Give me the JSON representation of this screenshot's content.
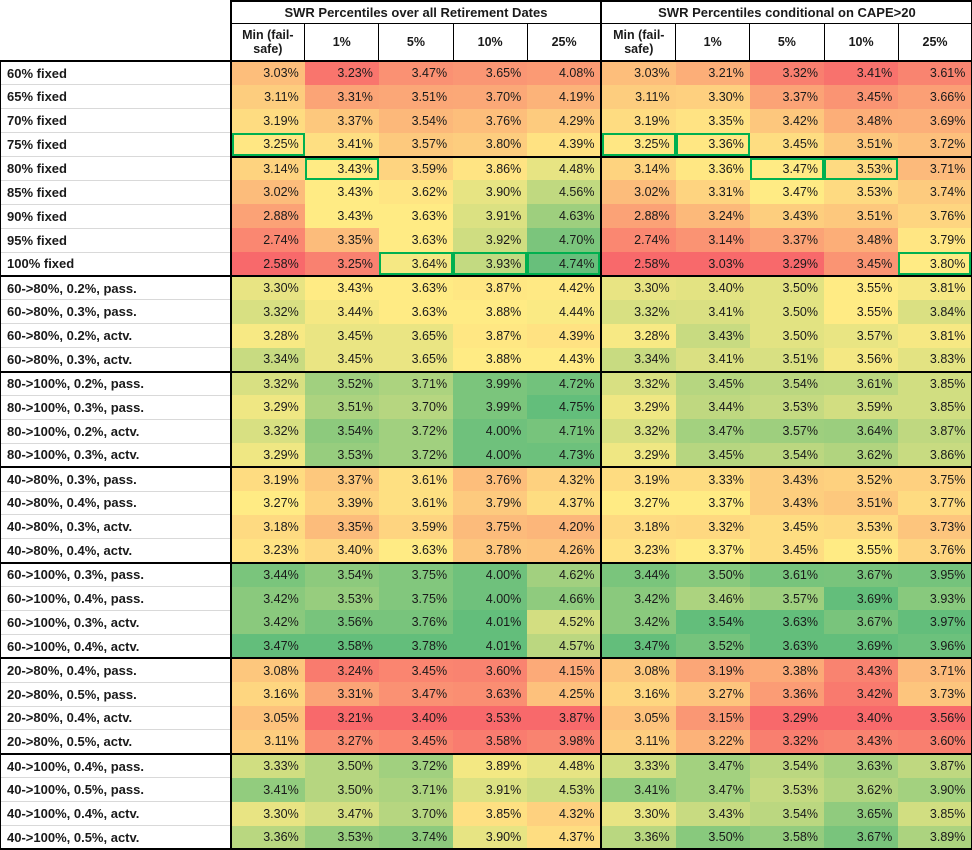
{
  "chart_data": {
    "type": "heatmap-table",
    "group_headers": [
      "SWR Percentiles over all Retirement Dates",
      "SWR Percentiles conditional on CAPE>20"
    ],
    "col_headers": [
      "Min (fail-safe)",
      "1%",
      "5%",
      "10%",
      "25%"
    ],
    "value_suffix": "%",
    "colors": {
      "scale_min_red": "#F8696B",
      "scale_mid_yellow": "#FFEB84",
      "scale_max_green": "#63BE7B",
      "highlight_border_green": "#00B050",
      "border_black": "#000000",
      "label_gridline": "#d9d9d9"
    },
    "color_scale_note": "3-color scale applied per column: min=red, median=yellow, max=green",
    "blocks": [
      {
        "rows": [
          {
            "label": "60% fixed",
            "all": [
              3.03,
              3.23,
              3.47,
              3.65,
              4.08
            ],
            "cape": [
              3.03,
              3.21,
              3.32,
              3.41,
              3.61
            ],
            "hl_all": [],
            "hl_cape": []
          },
          {
            "label": "65% fixed",
            "all": [
              3.11,
              3.31,
              3.51,
              3.7,
              4.19
            ],
            "cape": [
              3.11,
              3.3,
              3.37,
              3.45,
              3.66
            ],
            "hl_all": [],
            "hl_cape": []
          },
          {
            "label": "70% fixed",
            "all": [
              3.19,
              3.37,
              3.54,
              3.76,
              4.29
            ],
            "cape": [
              3.19,
              3.35,
              3.42,
              3.48,
              3.69
            ],
            "hl_all": [],
            "hl_cape": []
          },
          {
            "label": "75% fixed",
            "all": [
              3.25,
              3.41,
              3.57,
              3.8,
              4.39
            ],
            "cape": [
              3.25,
              3.36,
              3.45,
              3.51,
              3.72
            ],
            "hl_all": [
              0
            ],
            "hl_cape": [
              0,
              1
            ]
          },
          {
            "label": "80% fixed",
            "all": [
              3.14,
              3.43,
              3.59,
              3.86,
              4.48
            ],
            "cape": [
              3.14,
              3.36,
              3.47,
              3.53,
              3.71
            ],
            "hl_all": [
              1
            ],
            "hl_cape": [
              2,
              3
            ],
            "divider_above": true
          },
          {
            "label": "85% fixed",
            "all": [
              3.02,
              3.43,
              3.62,
              3.9,
              4.56
            ],
            "cape": [
              3.02,
              3.31,
              3.47,
              3.53,
              3.74
            ],
            "hl_all": [],
            "hl_cape": []
          },
          {
            "label": "90% fixed",
            "all": [
              2.88,
              3.43,
              3.63,
              3.91,
              4.63
            ],
            "cape": [
              2.88,
              3.24,
              3.43,
              3.51,
              3.76
            ],
            "hl_all": [],
            "hl_cape": []
          },
          {
            "label": "95% fixed",
            "all": [
              2.74,
              3.35,
              3.63,
              3.92,
              4.7
            ],
            "cape": [
              2.74,
              3.14,
              3.37,
              3.48,
              3.79
            ],
            "hl_all": [],
            "hl_cape": []
          },
          {
            "label": "100% fixed",
            "all": [
              2.58,
              3.25,
              3.64,
              3.93,
              4.74
            ],
            "cape": [
              2.58,
              3.03,
              3.29,
              3.45,
              3.8
            ],
            "hl_all": [
              2,
              3,
              4
            ],
            "hl_cape": [
              4
            ]
          }
        ]
      },
      {
        "rows": [
          {
            "label": "60->80%, 0.2%, pass.",
            "all": [
              3.3,
              3.43,
              3.63,
              3.87,
              4.42
            ],
            "cape": [
              3.3,
              3.4,
              3.5,
              3.55,
              3.81
            ],
            "hl_all": [],
            "hl_cape": []
          },
          {
            "label": "60->80%, 0.3%, pass.",
            "all": [
              3.32,
              3.44,
              3.63,
              3.88,
              4.44
            ],
            "cape": [
              3.32,
              3.41,
              3.5,
              3.55,
              3.84
            ],
            "hl_all": [],
            "hl_cape": []
          },
          {
            "label": "60->80%, 0.2%, actv.",
            "all": [
              3.28,
              3.45,
              3.65,
              3.87,
              4.39
            ],
            "cape": [
              3.28,
              3.43,
              3.5,
              3.57,
              3.81
            ],
            "hl_all": [],
            "hl_cape": []
          },
          {
            "label": "60->80%, 0.3%, actv.",
            "all": [
              3.34,
              3.45,
              3.65,
              3.88,
              4.43
            ],
            "cape": [
              3.34,
              3.41,
              3.51,
              3.56,
              3.83
            ],
            "hl_all": [],
            "hl_cape": []
          }
        ]
      },
      {
        "rows": [
          {
            "label": "80->100%, 0.2%, pass.",
            "all": [
              3.32,
              3.52,
              3.71,
              3.99,
              4.72
            ],
            "cape": [
              3.32,
              3.45,
              3.54,
              3.61,
              3.85
            ],
            "hl_all": [],
            "hl_cape": []
          },
          {
            "label": "80->100%, 0.3%, pass.",
            "all": [
              3.29,
              3.51,
              3.7,
              3.99,
              4.75
            ],
            "cape": [
              3.29,
              3.44,
              3.53,
              3.59,
              3.85
            ],
            "hl_all": [],
            "hl_cape": []
          },
          {
            "label": "80->100%, 0.2%, actv.",
            "all": [
              3.32,
              3.54,
              3.72,
              4.0,
              4.71
            ],
            "cape": [
              3.32,
              3.47,
              3.57,
              3.64,
              3.87
            ],
            "hl_all": [],
            "hl_cape": []
          },
          {
            "label": "80->100%, 0.3%, actv.",
            "all": [
              3.29,
              3.53,
              3.72,
              4.0,
              4.73
            ],
            "cape": [
              3.29,
              3.45,
              3.54,
              3.62,
              3.86
            ],
            "hl_all": [],
            "hl_cape": []
          }
        ]
      },
      {
        "rows": [
          {
            "label": "40->80%, 0.3%, pass.",
            "all": [
              3.19,
              3.37,
              3.61,
              3.76,
              4.32
            ],
            "cape": [
              3.19,
              3.33,
              3.43,
              3.52,
              3.75
            ],
            "hl_all": [],
            "hl_cape": []
          },
          {
            "label": "40->80%, 0.4%, pass.",
            "all": [
              3.27,
              3.39,
              3.61,
              3.79,
              4.37
            ],
            "cape": [
              3.27,
              3.37,
              3.43,
              3.51,
              3.77
            ],
            "hl_all": [],
            "hl_cape": []
          },
          {
            "label": "40->80%, 0.3%, actv.",
            "all": [
              3.18,
              3.35,
              3.59,
              3.75,
              4.2
            ],
            "cape": [
              3.18,
              3.32,
              3.45,
              3.53,
              3.73
            ],
            "hl_all": [],
            "hl_cape": []
          },
          {
            "label": "40->80%, 0.4%, actv.",
            "all": [
              3.23,
              3.4,
              3.63,
              3.78,
              4.26
            ],
            "cape": [
              3.23,
              3.37,
              3.45,
              3.55,
              3.76
            ],
            "hl_all": [],
            "hl_cape": []
          }
        ]
      },
      {
        "rows": [
          {
            "label": "60->100%, 0.3%, pass.",
            "all": [
              3.44,
              3.54,
              3.75,
              4.0,
              4.62
            ],
            "cape": [
              3.44,
              3.5,
              3.61,
              3.67,
              3.95
            ],
            "hl_all": [],
            "hl_cape": []
          },
          {
            "label": "60->100%, 0.4%, pass.",
            "all": [
              3.42,
              3.53,
              3.75,
              4.0,
              4.66
            ],
            "cape": [
              3.42,
              3.46,
              3.57,
              3.69,
              3.93
            ],
            "hl_all": [],
            "hl_cape": []
          },
          {
            "label": "60->100%, 0.3%, actv.",
            "all": [
              3.42,
              3.56,
              3.76,
              4.01,
              4.52
            ],
            "cape": [
              3.42,
              3.54,
              3.63,
              3.67,
              3.97
            ],
            "hl_all": [],
            "hl_cape": []
          },
          {
            "label": "60->100%, 0.4%, actv.",
            "all": [
              3.47,
              3.58,
              3.78,
              4.01,
              4.57
            ],
            "cape": [
              3.47,
              3.52,
              3.63,
              3.69,
              3.96
            ],
            "hl_all": [],
            "hl_cape": []
          }
        ]
      },
      {
        "rows": [
          {
            "label": "20->80%, 0.4%, pass.",
            "all": [
              3.08,
              3.24,
              3.45,
              3.6,
              4.15
            ],
            "cape": [
              3.08,
              3.19,
              3.38,
              3.43,
              3.71
            ],
            "hl_all": [],
            "hl_cape": []
          },
          {
            "label": "20->80%, 0.5%, pass.",
            "all": [
              3.16,
              3.31,
              3.47,
              3.63,
              4.25
            ],
            "cape": [
              3.16,
              3.27,
              3.36,
              3.42,
              3.73
            ],
            "hl_all": [],
            "hl_cape": []
          },
          {
            "label": "20->80%, 0.4%, actv.",
            "all": [
              3.05,
              3.21,
              3.4,
              3.53,
              3.87
            ],
            "cape": [
              3.05,
              3.15,
              3.29,
              3.4,
              3.56
            ],
            "hl_all": [],
            "hl_cape": []
          },
          {
            "label": "20->80%, 0.5%, actv.",
            "all": [
              3.11,
              3.27,
              3.45,
              3.58,
              3.98
            ],
            "cape": [
              3.11,
              3.22,
              3.32,
              3.43,
              3.6
            ],
            "hl_all": [],
            "hl_cape": []
          }
        ]
      },
      {
        "rows": [
          {
            "label": "40->100%, 0.4%, pass.",
            "all": [
              3.33,
              3.5,
              3.72,
              3.89,
              4.48
            ],
            "cape": [
              3.33,
              3.47,
              3.54,
              3.63,
              3.87
            ],
            "hl_all": [],
            "hl_cape": []
          },
          {
            "label": "40->100%, 0.5%, pass.",
            "all": [
              3.41,
              3.5,
              3.71,
              3.91,
              4.53
            ],
            "cape": [
              3.41,
              3.47,
              3.53,
              3.62,
              3.9
            ],
            "hl_all": [],
            "hl_cape": []
          },
          {
            "label": "40->100%, 0.4%, actv.",
            "all": [
              3.3,
              3.47,
              3.7,
              3.85,
              4.32
            ],
            "cape": [
              3.3,
              3.43,
              3.54,
              3.65,
              3.85
            ],
            "hl_all": [],
            "hl_cape": []
          },
          {
            "label": "40->100%, 0.5%, actv.",
            "all": [
              3.36,
              3.53,
              3.74,
              3.9,
              4.37
            ],
            "cape": [
              3.36,
              3.5,
              3.58,
              3.67,
              3.89
            ],
            "hl_all": [],
            "hl_cape": []
          }
        ]
      }
    ]
  }
}
